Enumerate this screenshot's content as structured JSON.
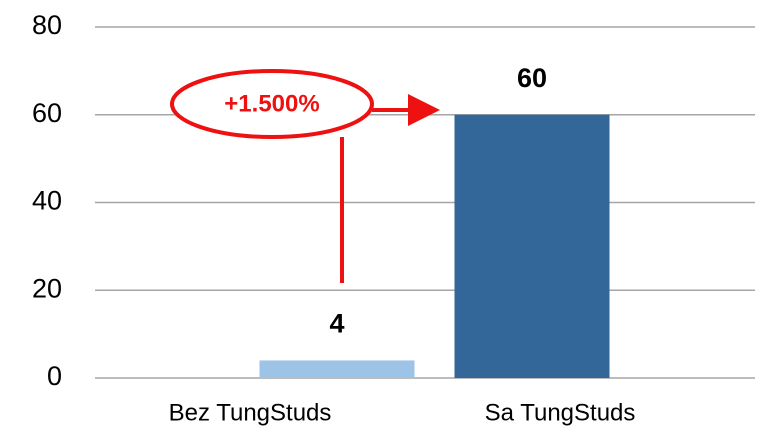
{
  "chart_data": {
    "type": "bar",
    "categories": [
      "Bez TungStuds",
      "Sa TungStuds"
    ],
    "values": [
      4,
      60
    ],
    "colors": [
      "#9dc3e6",
      "#336699"
    ],
    "ylim": [
      0,
      80
    ],
    "yticks": [
      0,
      20,
      40,
      60,
      80
    ],
    "grid": true,
    "annotation": "+1.500%"
  }
}
